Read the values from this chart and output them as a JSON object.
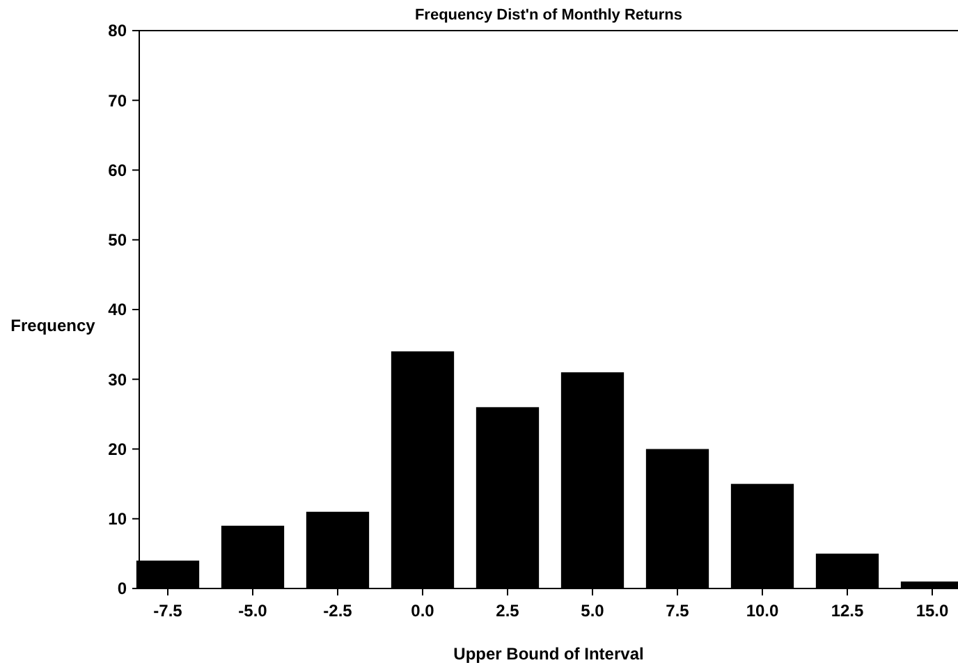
{
  "chart_data": {
    "type": "bar",
    "title": "Frequency Dist'n of Monthly Returns",
    "xlabel": "Upper Bound of Interval",
    "ylabel": "Frequency",
    "categories": [
      "-7.5",
      "-5.0",
      "-2.5",
      "0.0",
      "2.5",
      "5.0",
      "7.5",
      "10.0",
      "12.5",
      "15.0"
    ],
    "values": [
      4,
      9,
      11,
      34,
      26,
      31,
      20,
      15,
      5,
      1
    ],
    "color": "#000000",
    "ylim": [
      0,
      80
    ],
    "yticks": [
      0,
      10,
      20,
      30,
      40,
      50,
      60,
      70,
      80
    ],
    "grid": false
  }
}
